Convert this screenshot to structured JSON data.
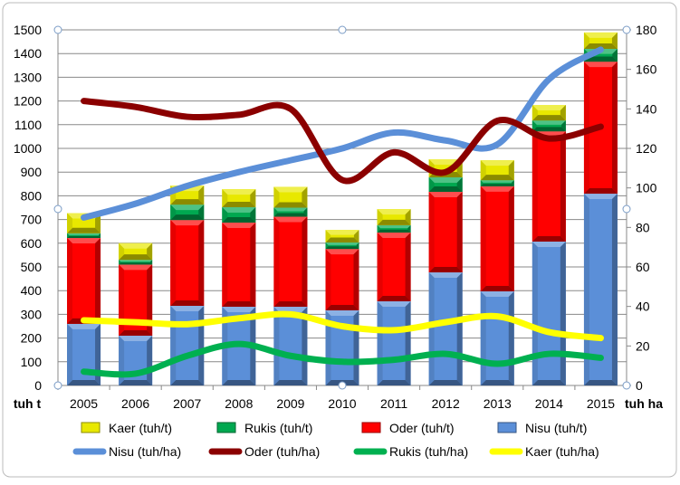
{
  "chart_data": {
    "type": "bar+line",
    "categories": [
      "2005",
      "2006",
      "2007",
      "2008",
      "2009",
      "2010",
      "2011",
      "2012",
      "2013",
      "2014",
      "2015"
    ],
    "left_axis": {
      "label": "tuh t",
      "ylim": [
        0,
        1500
      ],
      "ticks": [
        0,
        100,
        200,
        300,
        400,
        500,
        600,
        700,
        800,
        900,
        1000,
        1100,
        1200,
        1300,
        1400,
        1500
      ]
    },
    "right_axis": {
      "label": "tuh ha",
      "ylim": [
        0,
        180
      ],
      "ticks": [
        0,
        20,
        40,
        60,
        80,
        100,
        120,
        140,
        160,
        180
      ]
    },
    "bar_series": [
      {
        "name": "Nisu (tuh/t)",
        "color": "#5b8fd8",
        "values": [
          260,
          210,
          336,
          332,
          332,
          317,
          355,
          477,
          397,
          607,
          809
        ]
      },
      {
        "name": "Oder (tuh/t)",
        "color": "#ff0000",
        "values": [
          362,
          300,
          362,
          355,
          380,
          259,
          290,
          340,
          443,
          465,
          557
        ]
      },
      {
        "name": "Rukis (tuh/t)",
        "color": "#00a850",
        "values": [
          20,
          20,
          65,
          65,
          38,
          27,
          31,
          61,
          26,
          46,
          54
        ]
      },
      {
        "name": "Kaer (tuh/t)",
        "color": "#e8e800",
        "values": [
          85,
          70,
          80,
          76,
          88,
          53,
          68,
          76,
          84,
          65,
          69
        ]
      }
    ],
    "line_series": [
      {
        "name": "Nisu (tuh/ha)",
        "color": "#5b8fd8",
        "values": [
          85,
          92,
          101,
          108,
          114,
          120,
          128,
          124,
          122,
          155,
          170
        ]
      },
      {
        "name": "Oder (tuh/ha)",
        "color": "#8b0000",
        "values": [
          144,
          141,
          136,
          137,
          140,
          104,
          118,
          108,
          134,
          125,
          131
        ]
      },
      {
        "name": "Rukis (tuh/ha)",
        "color": "#00b050",
        "values": [
          7,
          6,
          15,
          21,
          15,
          12,
          13,
          16,
          11,
          16,
          14
        ]
      },
      {
        "name": "Kaer (tuh/ha)",
        "color": "#ffff00",
        "values": [
          33,
          32,
          31,
          34,
          36,
          30,
          28,
          32,
          35,
          27,
          24
        ]
      }
    ],
    "legend": {
      "placement": "bottom",
      "entries": [
        "Kaer (tuh/t)",
        "Rukis (tuh/t)",
        "Oder (tuh/t)",
        "Nisu (tuh/t)",
        "Nisu (tuh/ha)",
        "Oder (tuh/ha)",
        "Rukis (tuh/ha)",
        "Kaer (tuh/ha)"
      ]
    },
    "grid": true
  }
}
